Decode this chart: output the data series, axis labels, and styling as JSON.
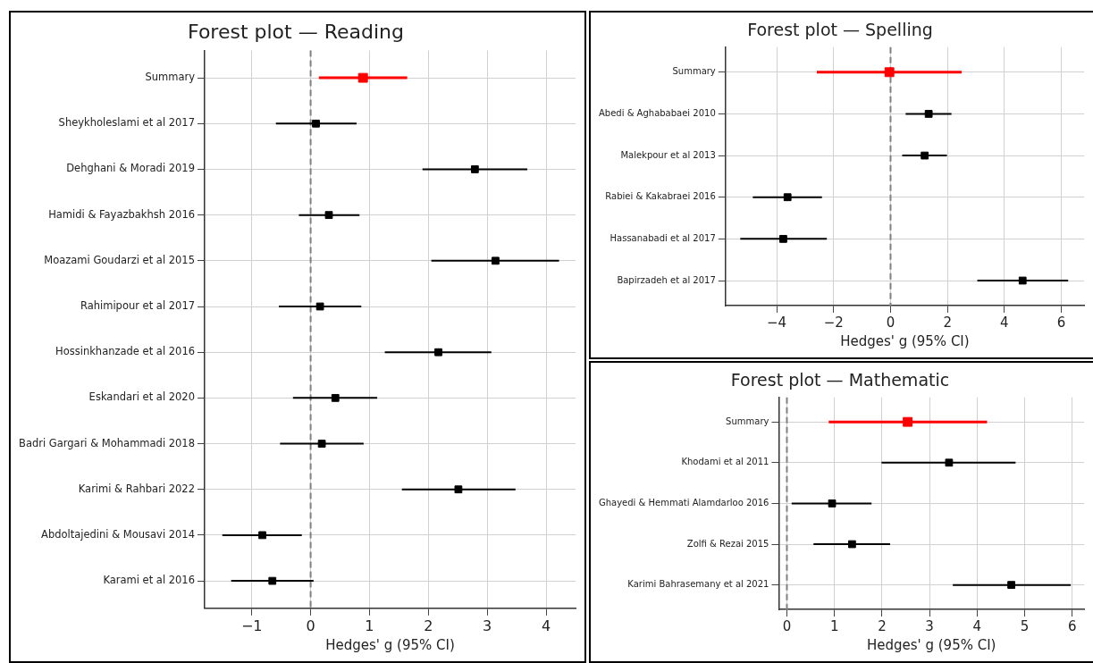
{
  "chart_data": [
    {
      "type": "scatter",
      "orientation": "horizontal",
      "title": "Forest plot — Reading",
      "xlabel": "Hedges' g (95% CI)",
      "categories": [
        "Summary",
        "Sheykholeslami et al 2017",
        "Dehghani & Moradi 2019",
        "Hamidi & Fayazbakhsh 2016",
        "Moazami Goudarzi et al 2015",
        "Rahimipour et al 2017",
        "Hossinkhanzade et al 2016",
        "Eskandari et al 2020",
        "Badri Gargari & Mohammadi 2018",
        "Karimi & Rahbari 2022",
        "Abdoltajedini & Mousavi 2014",
        "Karami et al 2016"
      ],
      "series": [
        {
          "color": "#ff0000",
          "values": [
            0.89,
            null,
            null,
            null,
            null,
            null,
            null,
            null,
            null,
            null,
            null,
            null
          ],
          "errors": [
            [
              0.14,
              1.64
            ],
            null,
            null,
            null,
            null,
            null,
            null,
            null,
            null,
            null,
            null,
            null
          ]
        },
        {
          "color": "#000000",
          "values": [
            null,
            0.09,
            2.79,
            0.31,
            3.14,
            0.16,
            2.17,
            0.42,
            0.19,
            2.51,
            -0.82,
            -0.65
          ],
          "errors": [
            null,
            [
              -0.59,
              0.78
            ],
            [
              1.9,
              3.68
            ],
            [
              -0.2,
              0.83
            ],
            [
              2.05,
              4.22
            ],
            [
              -0.54,
              0.86
            ],
            [
              1.26,
              3.07
            ],
            [
              -0.3,
              1.13
            ],
            [
              -0.52,
              0.9
            ],
            [
              1.55,
              3.48
            ],
            [
              -1.5,
              -0.15
            ],
            [
              -1.35,
              0.05
            ]
          ]
        }
      ],
      "xlim": [
        -1.8,
        4.5
      ],
      "xticks": [
        {
          "value": -1,
          "label": "−1"
        },
        0,
        1,
        2,
        3,
        4
      ],
      "grid": true,
      "marker": "square",
      "ref_lines": [
        {
          "axis": "x",
          "value": 0,
          "color": "#808080",
          "line_style": "dashed"
        }
      ]
    },
    {
      "type": "scatter",
      "orientation": "horizontal",
      "title": "Forest plot — Spelling",
      "xlabel": "Hedges' g (95% CI)",
      "categories": [
        "Summary",
        "Abedi & Aghababaei 2010",
        "Malekpour et al 2013",
        "Rabiei & Kakabraei 2016",
        "Hassanabadi et al 2017",
        "Bapirzadeh et al 2017"
      ],
      "series": [
        {
          "color": "#ff0000",
          "values": [
            -0.04,
            null,
            null,
            null,
            null,
            null
          ],
          "errors": [
            [
              -2.59,
              2.5
            ],
            null,
            null,
            null,
            null,
            null
          ]
        },
        {
          "color": "#000000",
          "values": [
            null,
            1.34,
            1.2,
            -3.62,
            -3.77,
            4.64
          ],
          "errors": [
            null,
            [
              0.53,
              2.14
            ],
            [
              0.41,
              1.98
            ],
            [
              -4.84,
              -2.41
            ],
            [
              -5.28,
              -2.24
            ],
            [
              3.05,
              6.24
            ]
          ]
        }
      ],
      "xlim": [
        -5.8,
        6.8
      ],
      "xticks": [
        {
          "value": -4,
          "label": "−4"
        },
        {
          "value": -2,
          "label": "−2"
        },
        0,
        2,
        4,
        6
      ],
      "grid": true,
      "marker": "square",
      "ref_lines": [
        {
          "axis": "x",
          "value": 0,
          "color": "#808080",
          "line_style": "dashed"
        }
      ]
    },
    {
      "type": "scatter",
      "orientation": "horizontal",
      "title": "Forest plot — Mathematic",
      "xlabel": "Hedges' g (95% CI)",
      "categories": [
        "Summary",
        "Khodami et al 2011",
        "Ghayedi & Hemmati Alamdarloo 2016",
        "Zolfi & Rezai 2015",
        "Karimi Bahrasemany et al 2021"
      ],
      "series": [
        {
          "color": "#ff0000",
          "values": [
            2.54,
            null,
            null,
            null,
            null
          ],
          "errors": [
            [
              0.88,
              4.21
            ],
            null,
            null,
            null,
            null
          ]
        },
        {
          "color": "#000000",
          "values": [
            null,
            3.41,
            0.95,
            1.37,
            4.72
          ],
          "errors": [
            null,
            [
              1.99,
              4.81
            ],
            [
              0.1,
              1.78
            ],
            [
              0.56,
              2.17
            ],
            [
              3.49,
              5.97
            ]
          ]
        }
      ],
      "xlim": [
        -0.17,
        6.25
      ],
      "xticks": [
        0,
        1,
        2,
        3,
        4,
        5,
        6
      ],
      "grid": true,
      "marker": "square",
      "ref_lines": [
        {
          "axis": "x",
          "value": 0,
          "color": "#808080",
          "line_style": "dashed"
        }
      ]
    }
  ]
}
